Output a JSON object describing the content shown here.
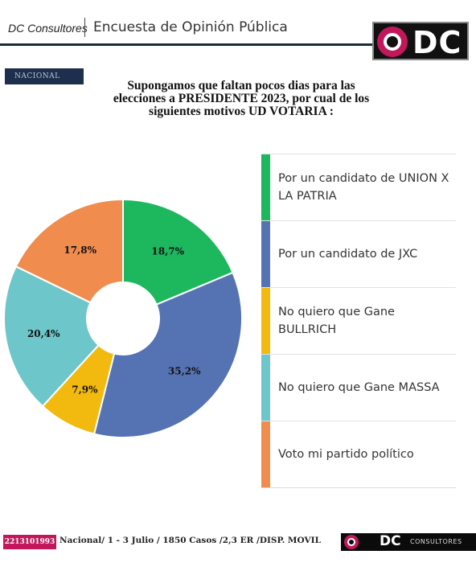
{
  "header": {
    "brand": "DC Consultores",
    "title": "Encuesta de Opinión Pública",
    "logo_text": "DC",
    "tag": "NACIONAL"
  },
  "question": {
    "lines": [
      "Supongamos que faltan pocos dias para las",
      "elecciones a PRESIDENTE 2023, por cual de los",
      "siguientes motivos UD VOTARIA :"
    ]
  },
  "chart_data": {
    "type": "pie",
    "variant": "donut",
    "title": "Supongamos que faltan pocos dias para las elecciones a PRESIDENTE 2023, por cual de los siguientes motivos UD VOTARIA :",
    "categories": [
      "Por un candidato de UNION X LA PATRIA",
      "Por un candidato de JXC",
      "No quiero que Gane BULLRICH",
      "No quiero que Gane MASSA",
      "Voto mi partido político"
    ],
    "values": [
      18.7,
      35.2,
      7.9,
      20.4,
      17.8
    ],
    "value_labels": [
      "18,7%",
      "35,2%",
      "7,9%",
      "20,4%",
      "17,8%"
    ],
    "colors": [
      "#1db75e",
      "#5573b3",
      "#f2b90f",
      "#6dc6c9",
      "#f08c4d"
    ],
    "legend_position": "right"
  },
  "legend": {
    "items": [
      "Por un candidato de UNION X LA PATRIA",
      "Por un candidato de JXC",
      "No quiero que Gane BULLRICH",
      "No quiero que Gane MASSA",
      "Voto mi partido político"
    ]
  },
  "footer": {
    "phone": "2213101993",
    "info": "Nacional/ 1 - 3 Julio / 1850 Casos /2,3   ER /DISP. MOVIL",
    "brand_dc": "DC",
    "brand_consultores": "CONSULTORES"
  }
}
